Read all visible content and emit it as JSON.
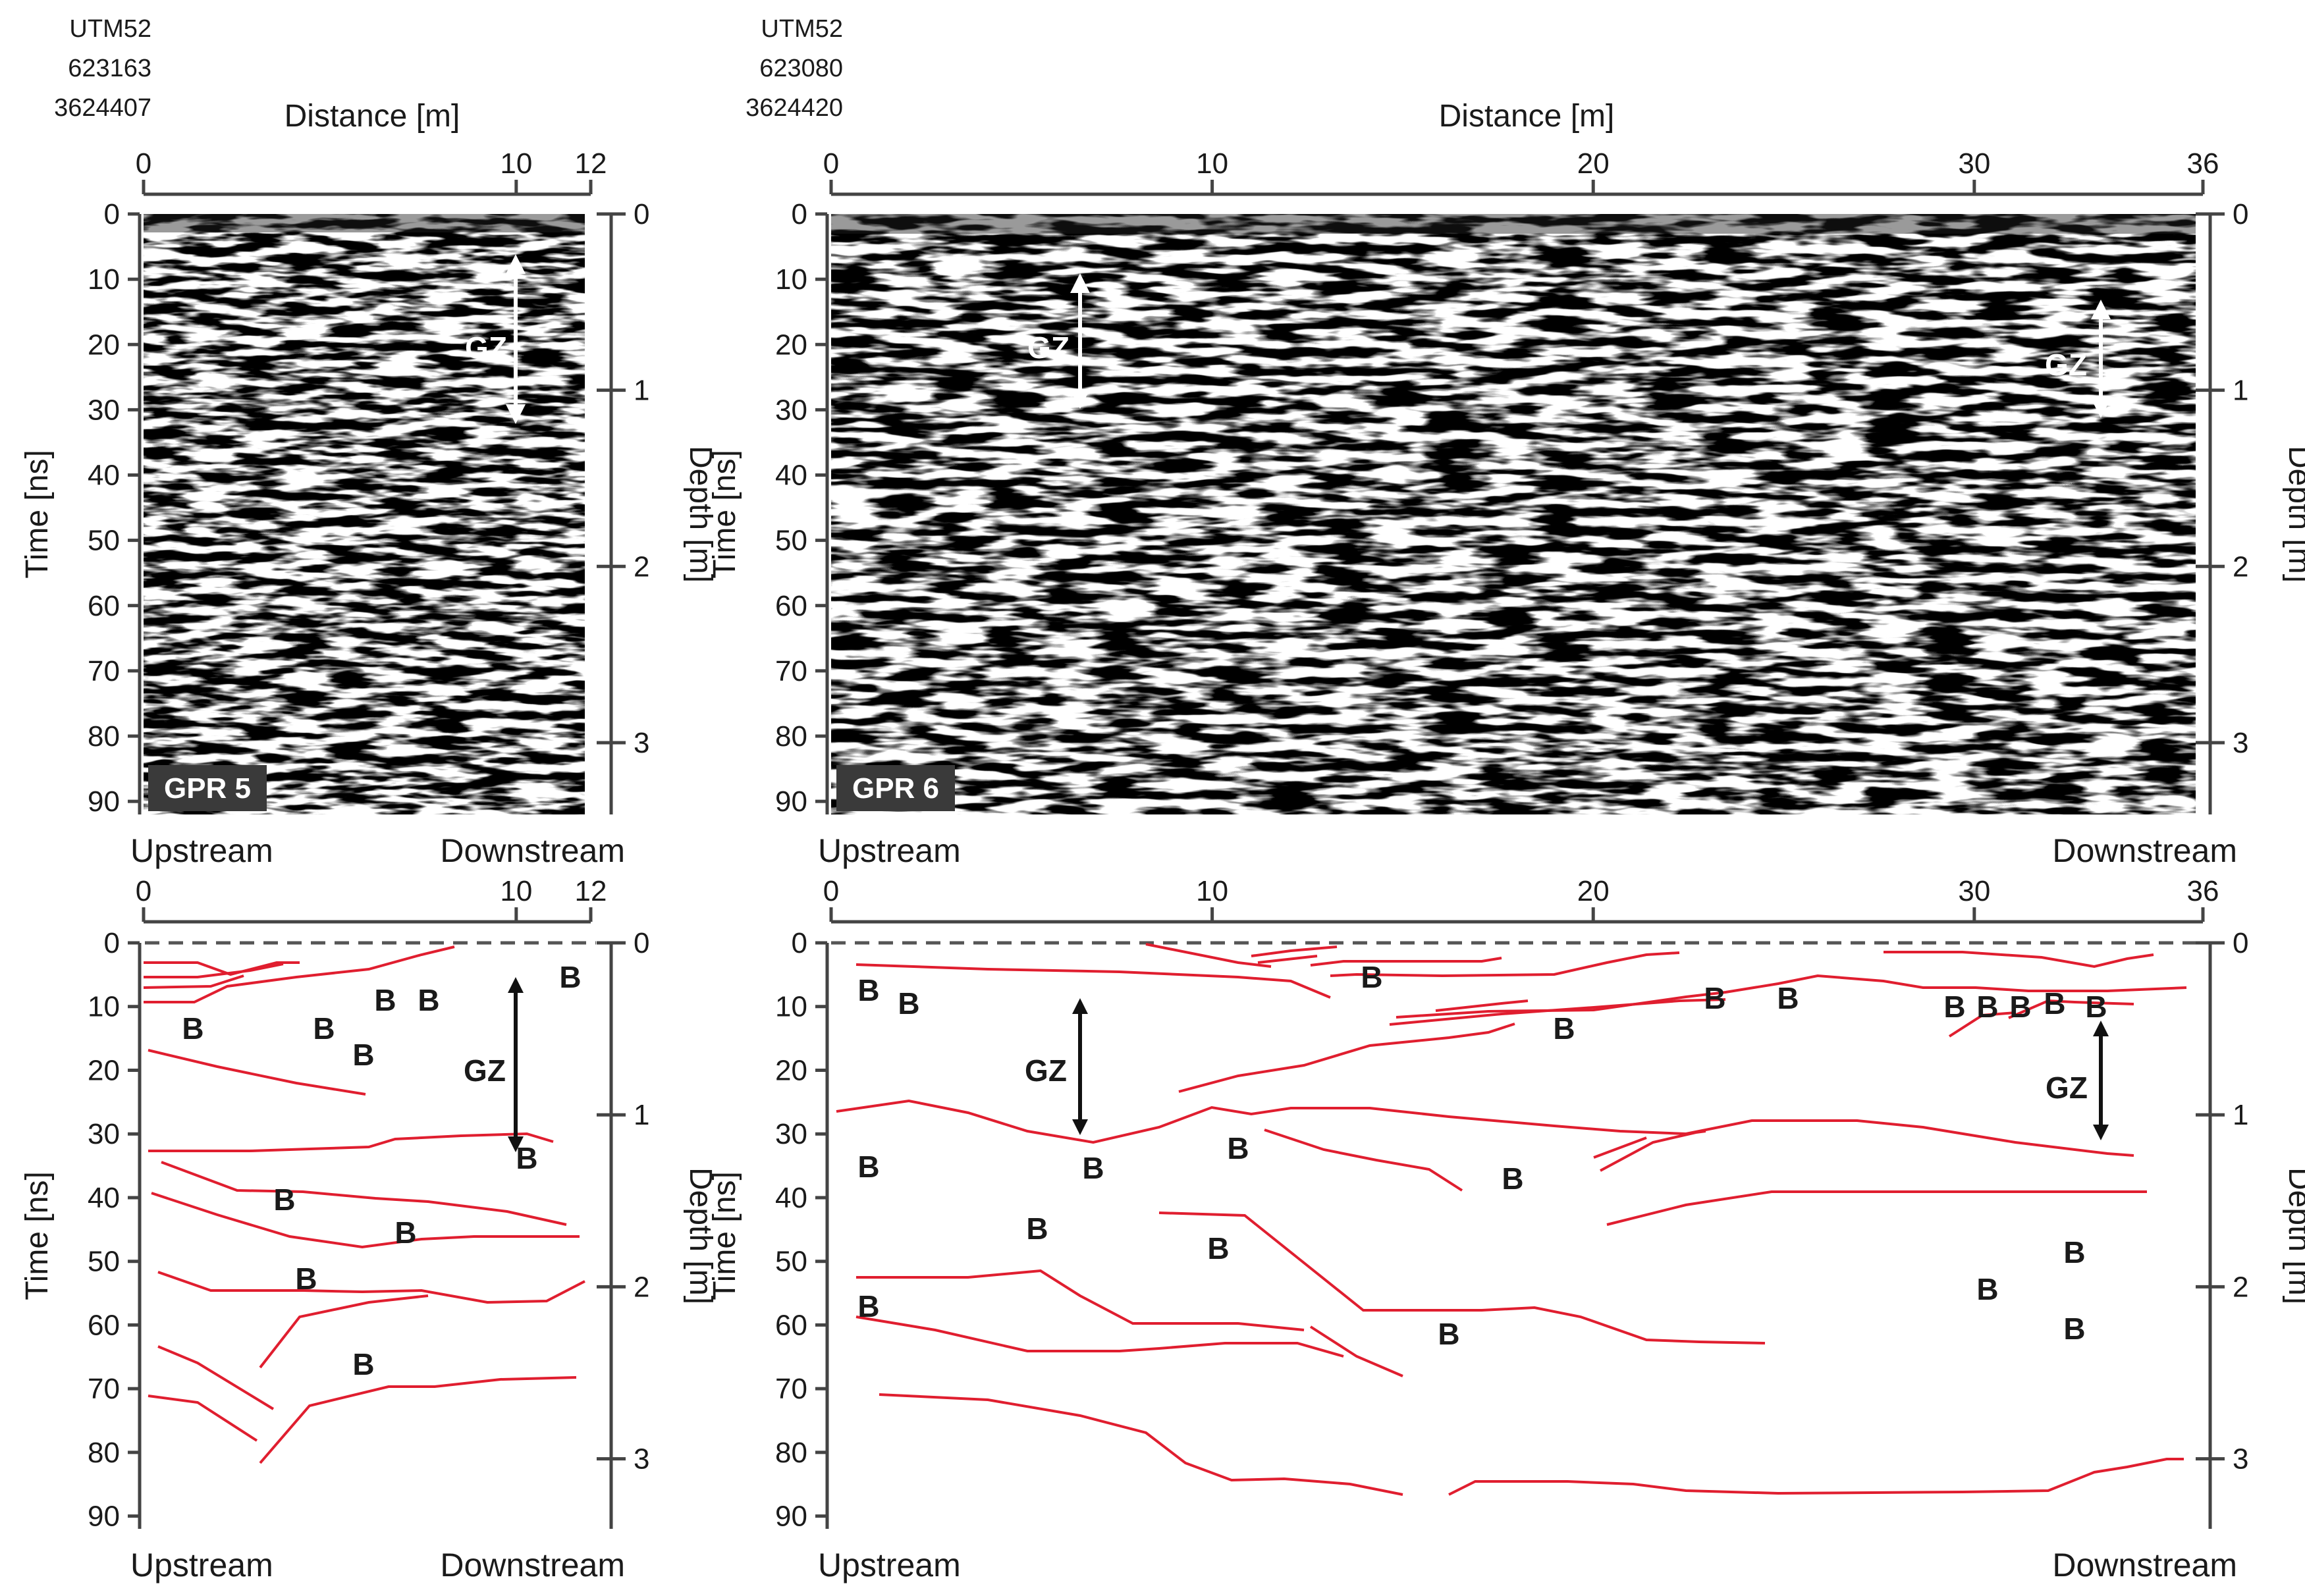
{
  "figure": {
    "ticks": {
      "distance_gpr5": [
        "0",
        "10",
        "12"
      ],
      "distance_gpr6": [
        "0",
        "10",
        "20",
        "30",
        "36"
      ],
      "time": [
        "0",
        "10",
        "20",
        "30",
        "40",
        "50",
        "60",
        "70",
        "80",
        "90"
      ],
      "depth": [
        "0",
        "1",
        "2",
        "3"
      ]
    },
    "labels": {
      "distance": "Distance [m]",
      "time": "Time [ns]",
      "depth": "Depth [m]",
      "upstream": "Upstream",
      "downstream": "Downstream",
      "gz": "GZ",
      "boulder": "B"
    },
    "panels": {
      "gpr5": {
        "utm": [
          "UTM52",
          "623163",
          "3624407"
        ],
        "tag": "GPR 5",
        "distance_max_m": 12,
        "time_max_ns": 92,
        "gz_range_ns": [
          7,
          31
        ],
        "gz_interp_range_ns": [
          7,
          31
        ]
      },
      "gpr6": {
        "utm": [
          "UTM52",
          "623080",
          "3624420"
        ],
        "tag": "GPR 6",
        "distance_max_m": 36,
        "time_max_ns": 92,
        "gz_ranges_ns": [
          [
            10,
            28
          ],
          [
            15,
            31
          ]
        ],
        "gz_interp_ranges_ns": [
          [
            10,
            29
          ],
          [
            14,
            30
          ]
        ]
      }
    },
    "colors": {
      "interpretation_line": "#e01e2f",
      "axis": "#444444",
      "tag_background": "#3a3a3a",
      "tag_text": "#ffffff"
    }
  }
}
